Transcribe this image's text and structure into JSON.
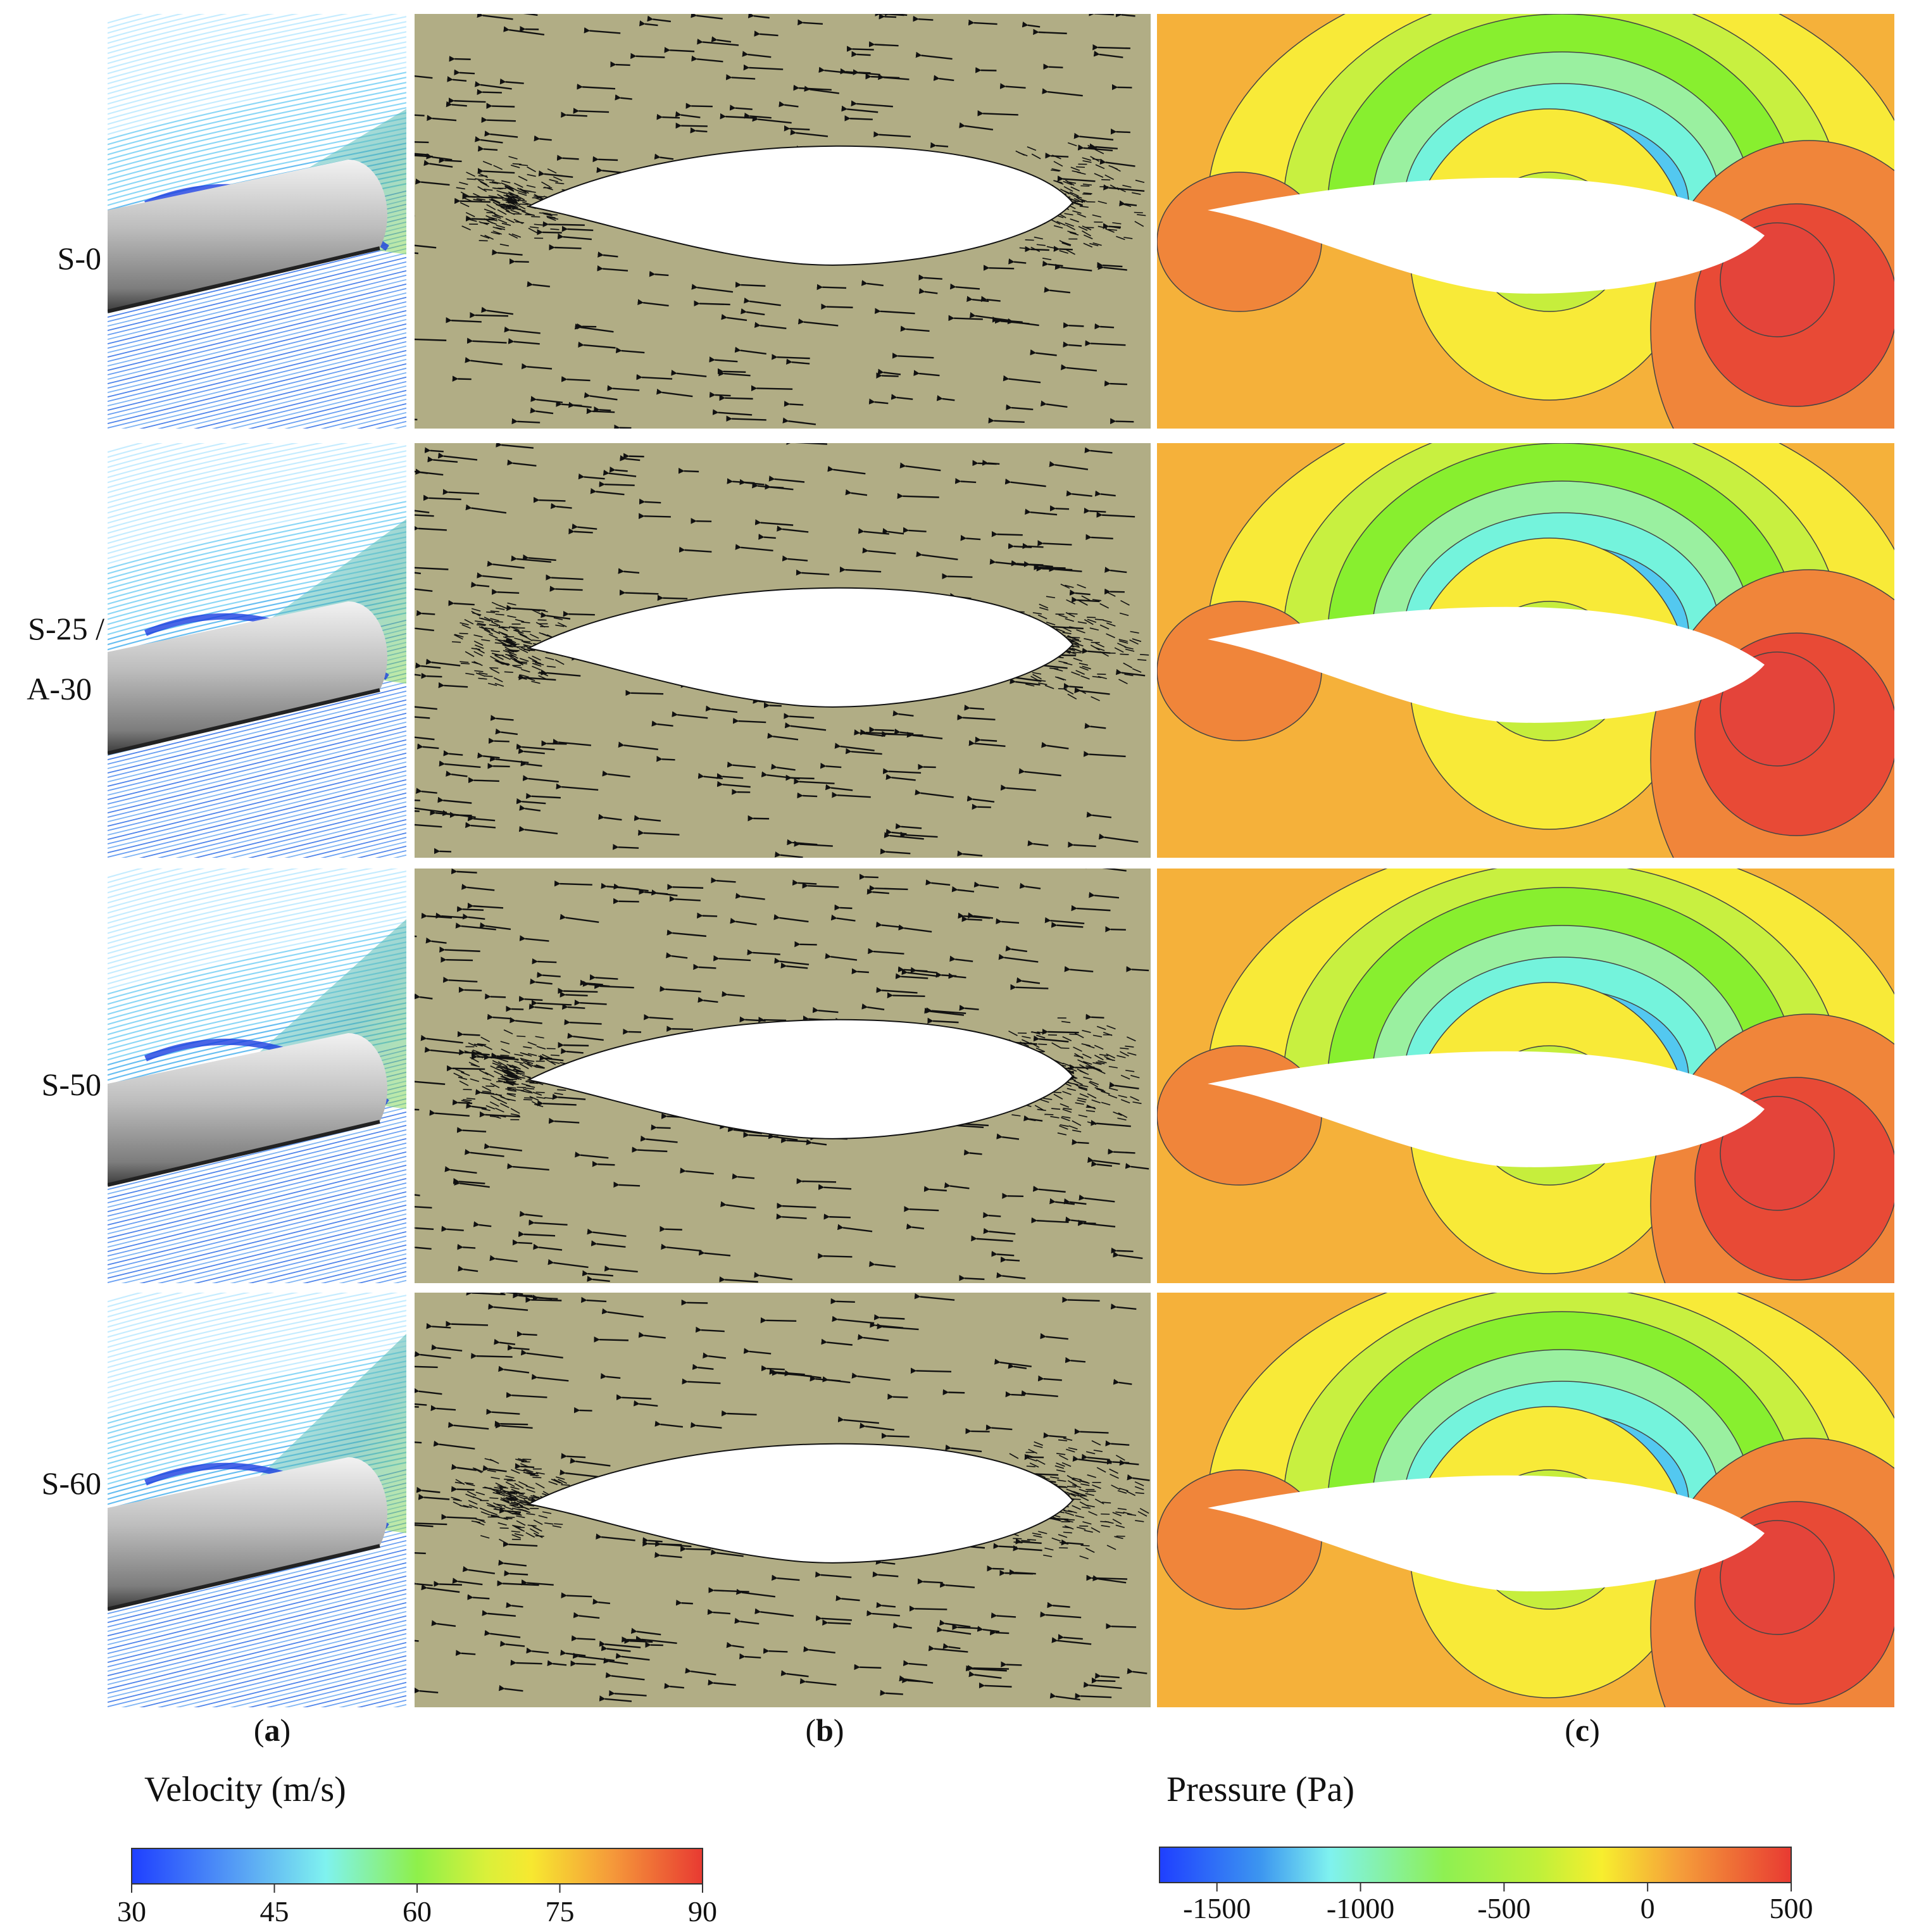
{
  "row_labels": [
    [
      "S-0"
    ],
    [
      "S-25 /",
      "A-30"
    ],
    [
      "S-50"
    ],
    [
      "S-60"
    ]
  ],
  "column_labels": [
    "a",
    "b",
    "c"
  ],
  "velocity_colorbar": {
    "title": "Velocity (m/s)",
    "min": 30,
    "max": 90,
    "ticks": [
      "30",
      "45",
      "60",
      "75",
      "90"
    ],
    "colors": [
      "#1f3fff",
      "#55a8f5",
      "#7ff2ef",
      "#9af35a",
      "#f7ee2e",
      "#f5a03a",
      "#e83a32"
    ]
  },
  "pressure_colorbar": {
    "title": "Pressure (Pa)",
    "min": -1700,
    "max": 500,
    "ticks": [
      "-1500",
      "-1000",
      "-500",
      "0",
      "500"
    ],
    "tick_values": [
      -1500,
      -1000,
      -500,
      0,
      500
    ],
    "colors": [
      "#1f3fff",
      "#3c96f0",
      "#7ff2ef",
      "#8ef052",
      "#99f033",
      "#f7ee2e",
      "#f5a03a",
      "#e83a32"
    ]
  },
  "colors": {
    "streamline_blue": "#2f6fe6",
    "streamline_light": "#7fd8ff",
    "wing_gray": "#9a9a9a",
    "vector_bg": "#b1ad85",
    "vector_arrow": "#111111",
    "pressure_orange": "#f5b13a",
    "pressure_dark_orange": "#f0853a",
    "pressure_red": "#e84a36",
    "pressure_yellow": "#f8ea38",
    "pressure_light_green": "#c8f040",
    "pressure_green": "#88ef2f",
    "pressure_cyan": "#74f3dc",
    "pressure_blue": "#3f8ff2"
  }
}
